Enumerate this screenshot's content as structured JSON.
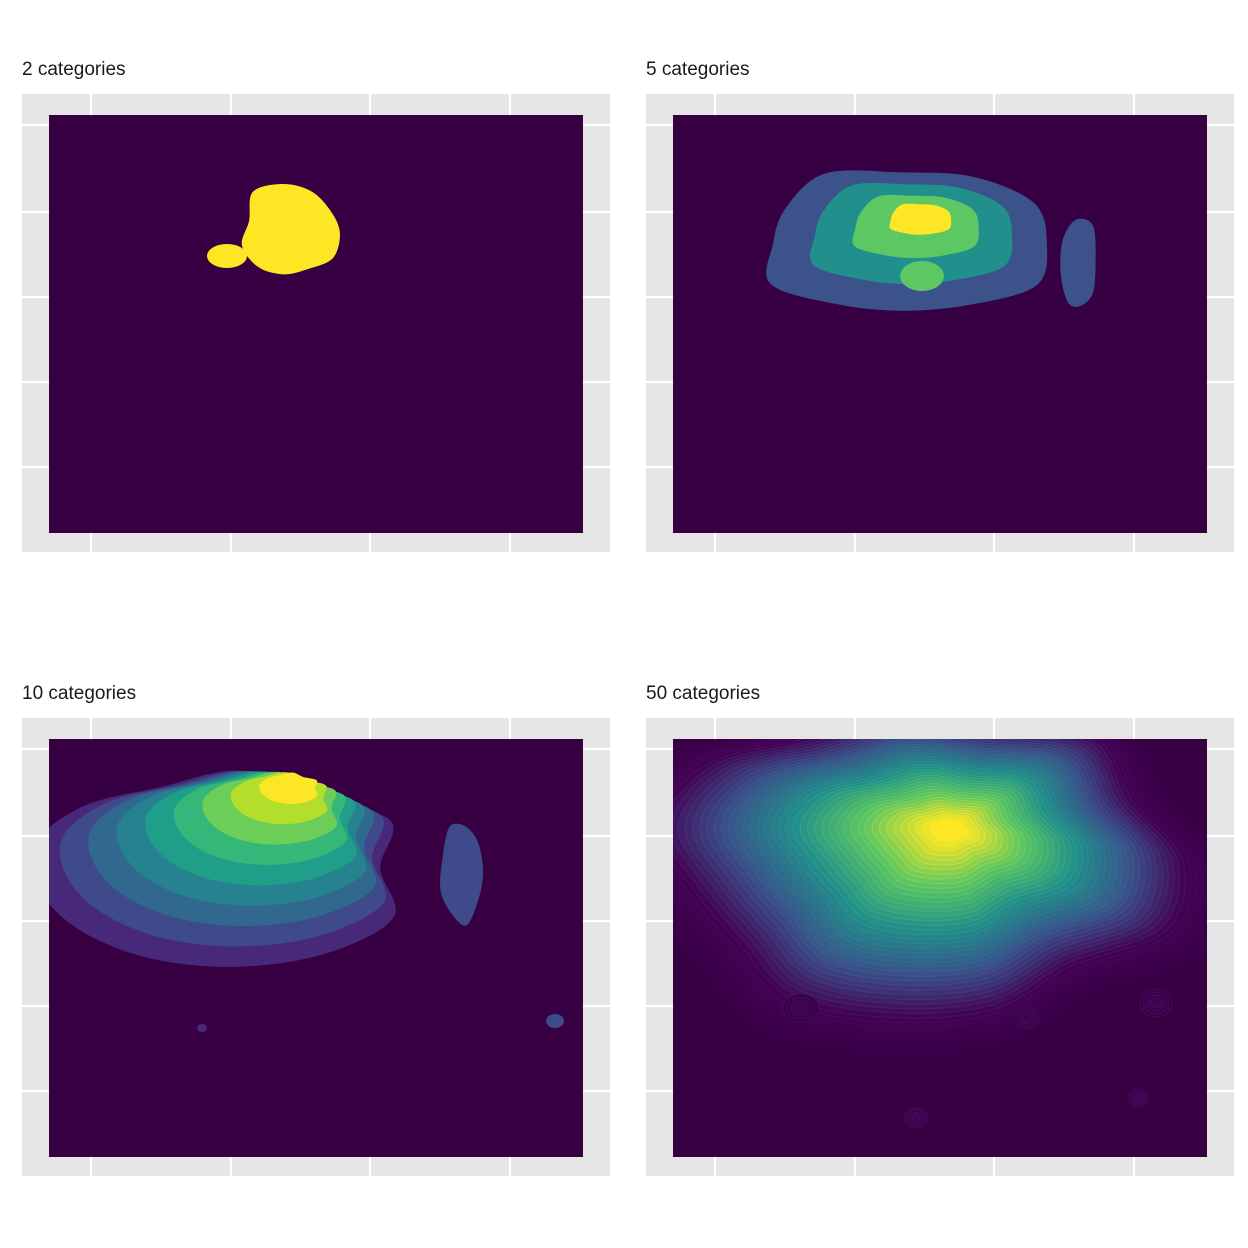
{
  "figure": {
    "panels": [
      {
        "title": "2 categories"
      },
      {
        "title": "5 categories"
      },
      {
        "title": "10 categories"
      },
      {
        "title": "50 categories"
      }
    ]
  },
  "chart_data": [
    {
      "type": "heatmap",
      "subtype": "filled_density_contour",
      "title": "2 categories",
      "bins": 2,
      "xlabel": "",
      "ylabel": "",
      "x_tick_labels": [],
      "y_tick_labels": [],
      "grid": true,
      "palette": [
        "#360043",
        "#FDE725"
      ]
    },
    {
      "type": "heatmap",
      "subtype": "filled_density_contour",
      "title": "5 categories",
      "bins": 5,
      "xlabel": "",
      "ylabel": "",
      "x_tick_labels": [],
      "y_tick_labels": [],
      "grid": true,
      "palette": [
        "#360043",
        "#3B528B",
        "#21908C",
        "#5DC863",
        "#FDE725"
      ]
    },
    {
      "type": "heatmap",
      "subtype": "filled_density_contour",
      "title": "10 categories",
      "bins": 10,
      "xlabel": "",
      "ylabel": "",
      "x_tick_labels": [],
      "y_tick_labels": [],
      "grid": true,
      "palette": [
        "#360043",
        "#482878",
        "#3E4A89",
        "#31688E",
        "#26828E",
        "#1F9E89",
        "#35B779",
        "#6DCD59",
        "#B4DE2C",
        "#FDE725"
      ]
    },
    {
      "type": "heatmap",
      "subtype": "filled_density_contour",
      "title": "50 categories",
      "bins": 50,
      "xlabel": "",
      "ylabel": "",
      "x_tick_labels": [],
      "y_tick_labels": [],
      "grid": true,
      "palette": [
        "#360043",
        "#440154",
        "#3B528B",
        "#21908C",
        "#5DC863",
        "#FDE725"
      ]
    }
  ],
  "colors": {
    "panel_background": "#E5E5E5",
    "grid": "#FFFFFF",
    "base_fill": "#360043"
  }
}
